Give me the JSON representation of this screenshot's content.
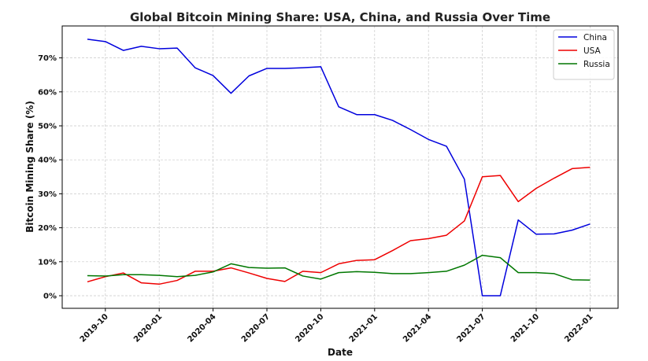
{
  "chart_data": {
    "type": "line",
    "title": "Global Bitcoin Mining Share: USA, China, and Russia Over Time",
    "xlabel": "Date",
    "ylabel": "Bitcoin Mining Share (%)",
    "x": [
      "2019-09",
      "2019-10",
      "2019-11",
      "2019-12",
      "2020-01",
      "2020-02",
      "2020-03",
      "2020-04",
      "2020-05",
      "2020-06",
      "2020-07",
      "2020-08",
      "2020-09",
      "2020-10",
      "2020-11",
      "2020-12",
      "2021-01",
      "2021-02",
      "2021-03",
      "2021-04",
      "2021-05",
      "2021-06",
      "2021-07",
      "2021-08",
      "2021-09",
      "2021-10",
      "2021-11",
      "2021-12",
      "2022-01"
    ],
    "x_ticks": [
      "2019-10",
      "2020-01",
      "2020-04",
      "2020-07",
      "2020-10",
      "2021-01",
      "2021-04",
      "2021-07",
      "2021-10",
      "2022-01"
    ],
    "y_ticks": [
      "0%",
      "10%",
      "20%",
      "30%",
      "40%",
      "50%",
      "60%",
      "70%"
    ],
    "ylim": [
      -3.8,
      79.5
    ],
    "series": [
      {
        "name": "China",
        "color": "#0000dd",
        "values": [
          75.5,
          74.8,
          72.2,
          73.4,
          72.7,
          72.9,
          67.1,
          64.8,
          59.6,
          64.7,
          66.9,
          66.9,
          67.1,
          67.4,
          55.6,
          53.3,
          53.3,
          51.6,
          48.9,
          46.0,
          44.0,
          34.3,
          0.0,
          0.0,
          22.3,
          18.1,
          18.2,
          19.3,
          21.1
        ]
      },
      {
        "name": "USA",
        "color": "#ee0000",
        "values": [
          4.1,
          5.6,
          6.7,
          3.8,
          3.4,
          4.5,
          7.2,
          7.2,
          8.2,
          6.7,
          5.1,
          4.2,
          7.2,
          6.8,
          9.4,
          10.4,
          10.6,
          13.3,
          16.2,
          16.8,
          17.8,
          22.0,
          35.0,
          35.4,
          27.7,
          31.6,
          34.6,
          37.4,
          37.8
        ]
      },
      {
        "name": "Russia",
        "color": "#007700",
        "values": [
          5.9,
          5.8,
          6.2,
          6.2,
          6.0,
          5.6,
          6.0,
          7.0,
          9.4,
          8.3,
          8.1,
          8.2,
          5.8,
          4.9,
          6.8,
          7.1,
          6.9,
          6.5,
          6.5,
          6.8,
          7.2,
          9.0,
          11.9,
          11.2,
          6.8,
          6.8,
          6.5,
          4.7,
          4.6
        ]
      }
    ],
    "grid": true,
    "legend_position": "top-right"
  }
}
